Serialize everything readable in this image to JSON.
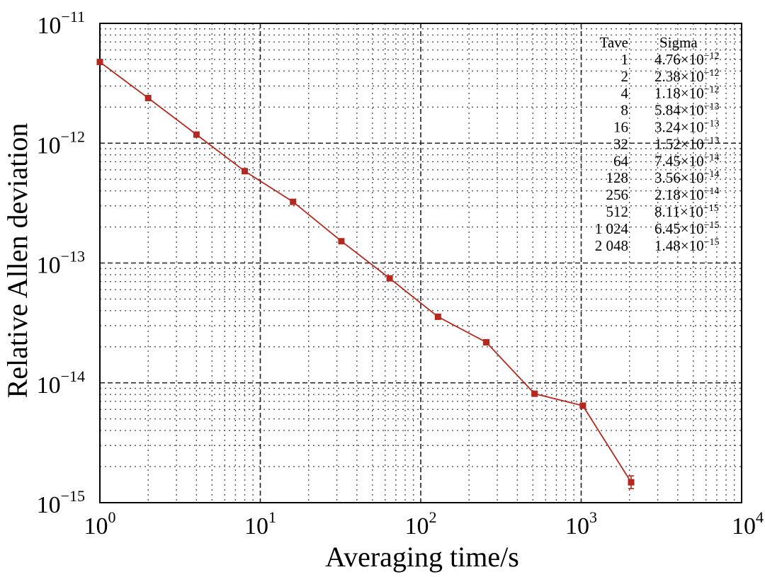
{
  "chart_data": {
    "type": "line",
    "xlabel": "Averaging time/s",
    "ylabel": "Relative Allen deviation",
    "x_scale": "log",
    "y_scale": "log",
    "xlim": [
      1,
      10000
    ],
    "ylim": [
      1e-15,
      1e-11
    ],
    "grid": true,
    "x_ticks": [
      {
        "base": "10",
        "exp": "0"
      },
      {
        "base": "10",
        "exp": "1"
      },
      {
        "base": "10",
        "exp": "2"
      },
      {
        "base": "10",
        "exp": "3"
      },
      {
        "base": "10",
        "exp": "4"
      }
    ],
    "y_ticks": [
      {
        "base": "10",
        "exp": "−11"
      },
      {
        "base": "10",
        "exp": "−12"
      },
      {
        "base": "10",
        "exp": "−13"
      },
      {
        "base": "10",
        "exp": "−14"
      },
      {
        "base": "10",
        "exp": "−15"
      }
    ],
    "series": [
      {
        "color": "#b5281f",
        "x": [
          1,
          2,
          4,
          8,
          16,
          32,
          64,
          128,
          256,
          512,
          1024,
          2048
        ],
        "y": [
          4.76e-12,
          2.38e-12,
          1.18e-12,
          5.84e-13,
          3.24e-13,
          1.52e-13,
          7.45e-14,
          3.56e-14,
          2.18e-14,
          8.11e-15,
          6.45e-15,
          1.48e-15
        ]
      }
    ],
    "table": {
      "headers": [
        "Tave",
        "Sigma"
      ],
      "rows": [
        {
          "tave": "1",
          "mant": "4.76",
          "exp": "−12"
        },
        {
          "tave": "2",
          "mant": "2.38",
          "exp": "−12"
        },
        {
          "tave": "4",
          "mant": "1.18",
          "exp": "−12"
        },
        {
          "tave": "8",
          "mant": "5.84",
          "exp": "−13"
        },
        {
          "tave": "16",
          "mant": "3.24",
          "exp": "−13"
        },
        {
          "tave": "32",
          "mant": "1.52",
          "exp": "−13"
        },
        {
          "tave": "64",
          "mant": "7.45",
          "exp": "−14"
        },
        {
          "tave": "128",
          "mant": "3.56",
          "exp": "−14"
        },
        {
          "tave": "256",
          "mant": "2.18",
          "exp": "−14"
        },
        {
          "tave": "512",
          "mant": "8.11",
          "exp": "−15"
        },
        {
          "tave": "1 024",
          "mant": "6.45",
          "exp": "−15"
        },
        {
          "tave": "2 048",
          "mant": "1.48",
          "exp": "−15"
        }
      ]
    }
  }
}
